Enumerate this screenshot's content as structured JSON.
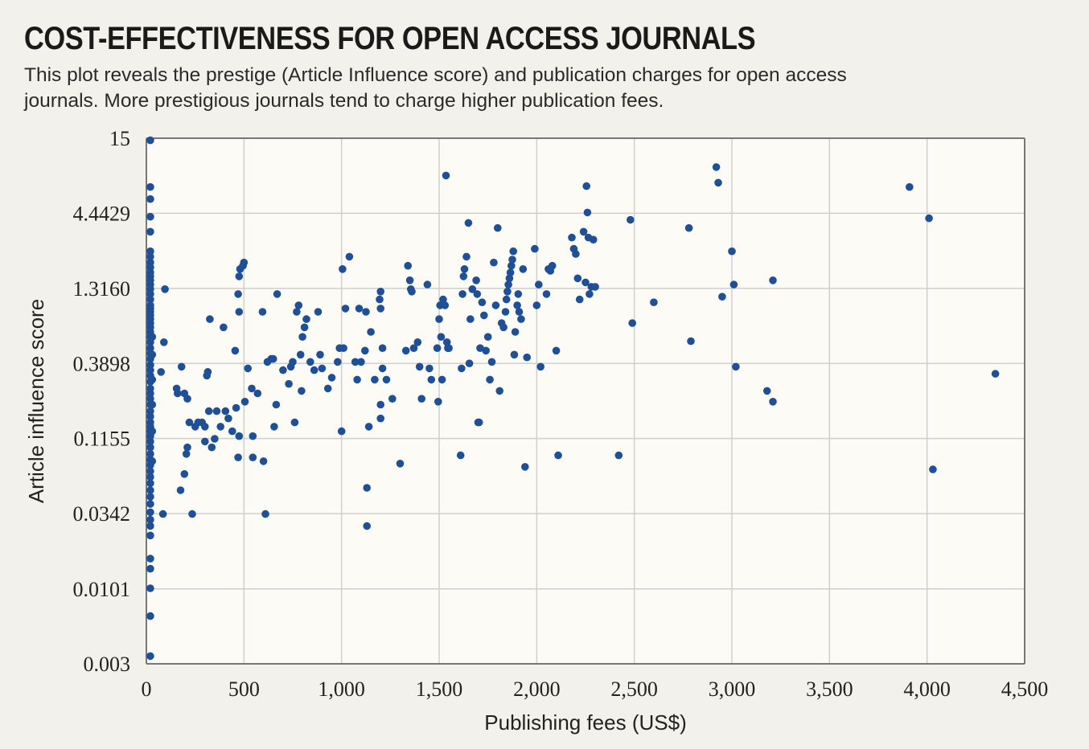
{
  "header": {
    "title": "COST-EFFECTIVENESS FOR OPEN ACCESS JOURNALS",
    "subtitle": "This plot reveals the prestige (Article Influence score) and publication charges for open access journals. More prestigious journals tend to charge higher publication fees."
  },
  "colors": {
    "background": "#f3f1ec",
    "plot_bg": "#fcfbf6",
    "grid": "#cfcfcf",
    "point": "#1f4f96",
    "axis": "#777777"
  },
  "chart_data": {
    "type": "scatter",
    "title": "COST-EFFECTIVENESS FOR OPEN ACCESS JOURNALS",
    "xlabel": "Publishing fees (US$)",
    "ylabel": "Article influence score",
    "xlim": [
      0,
      4500
    ],
    "ylim": [
      0.003,
      15
    ],
    "yscale": "log",
    "grid": true,
    "x_ticks": [
      0,
      500,
      1000,
      1500,
      2000,
      2500,
      3000,
      3500,
      4000,
      4500
    ],
    "x_tick_labels": [
      "0",
      "500",
      "1,000",
      "1,500",
      "2,000",
      "2,500",
      "3,000",
      "3,500",
      "4,000",
      "4,500"
    ],
    "y_ticks": [
      0.003,
      0.0101,
      0.0342,
      0.1155,
      0.3898,
      1.316,
      4.4429,
      15
    ],
    "y_tick_labels": [
      "0.003",
      "0.0101",
      "0.0342",
      "0.1155",
      "0.3898",
      "1.3160",
      "4.4429",
      "15"
    ],
    "series": [
      {
        "points": [
          [
            20,
            14.5
          ],
          [
            20,
            6.8
          ],
          [
            20,
            5.6
          ],
          [
            20,
            4.2
          ],
          [
            20,
            3.3
          ],
          [
            20,
            2.4
          ],
          [
            20,
            2.2
          ],
          [
            20,
            2.0
          ],
          [
            20,
            1.85
          ],
          [
            20,
            1.7
          ],
          [
            20,
            1.6
          ],
          [
            20,
            1.5
          ],
          [
            20,
            1.4
          ],
          [
            20,
            1.3
          ],
          [
            20,
            1.2
          ],
          [
            20,
            1.1
          ],
          [
            20,
            1.0
          ],
          [
            20,
            0.95
          ],
          [
            20,
            0.9
          ],
          [
            20,
            0.85
          ],
          [
            20,
            0.8
          ],
          [
            20,
            0.75
          ],
          [
            20,
            0.7
          ],
          [
            20,
            0.65
          ],
          [
            20,
            0.6
          ],
          [
            20,
            0.55
          ],
          [
            20,
            0.5
          ],
          [
            20,
            0.46
          ],
          [
            20,
            0.42
          ],
          [
            20,
            0.38
          ],
          [
            20,
            0.35
          ],
          [
            20,
            0.32
          ],
          [
            20,
            0.29
          ],
          [
            20,
            0.26
          ],
          [
            20,
            0.24
          ],
          [
            20,
            0.22
          ],
          [
            20,
            0.2
          ],
          [
            20,
            0.18
          ],
          [
            20,
            0.165
          ],
          [
            20,
            0.15
          ],
          [
            20,
            0.14
          ],
          [
            20,
            0.13
          ],
          [
            20,
            0.12
          ],
          [
            20,
            0.11
          ],
          [
            20,
            0.1
          ],
          [
            20,
            0.09
          ],
          [
            20,
            0.082
          ],
          [
            20,
            0.075
          ],
          [
            20,
            0.068
          ],
          [
            20,
            0.062
          ],
          [
            20,
            0.056
          ],
          [
            20,
            0.05
          ],
          [
            20,
            0.045
          ],
          [
            20,
            0.04
          ],
          [
            20,
            0.035
          ],
          [
            20,
            0.031
          ],
          [
            20,
            0.028
          ],
          [
            20,
            0.024
          ],
          [
            20,
            0.0165
          ],
          [
            20,
            0.014
          ],
          [
            20,
            0.0102
          ],
          [
            20,
            0.0065
          ],
          [
            20,
            0.0034
          ],
          [
            30,
            0.6
          ],
          [
            30,
            0.45
          ],
          [
            30,
            0.3
          ],
          [
            30,
            0.2
          ],
          [
            30,
            0.13
          ],
          [
            30,
            0.08
          ],
          [
            75,
            0.34
          ],
          [
            90,
            0.55
          ],
          [
            95,
            1.3
          ],
          [
            85,
            0.034
          ],
          [
            155,
            0.26
          ],
          [
            160,
            0.24
          ],
          [
            180,
            0.37
          ],
          [
            195,
            0.24
          ],
          [
            210,
            0.22
          ],
          [
            175,
            0.05
          ],
          [
            195,
            0.065
          ],
          [
            205,
            0.09
          ],
          [
            210,
            0.1
          ],
          [
            220,
            0.15
          ],
          [
            235,
            0.034
          ],
          [
            250,
            0.14
          ],
          [
            265,
            0.15
          ],
          [
            285,
            0.15
          ],
          [
            300,
            0.11
          ],
          [
            310,
            0.32
          ],
          [
            315,
            0.34
          ],
          [
            300,
            0.14
          ],
          [
            320,
            0.18
          ],
          [
            325,
            0.8
          ],
          [
            335,
            0.1
          ],
          [
            350,
            0.115
          ],
          [
            360,
            0.18
          ],
          [
            380,
            0.14
          ],
          [
            395,
            0.7
          ],
          [
            405,
            0.18
          ],
          [
            420,
            0.16
          ],
          [
            440,
            0.13
          ],
          [
            455,
            0.48
          ],
          [
            460,
            0.19
          ],
          [
            470,
            0.085
          ],
          [
            475,
            0.12
          ],
          [
            475,
            0.9
          ],
          [
            470,
            1.2
          ],
          [
            475,
            1.6
          ],
          [
            480,
            1.8
          ],
          [
            495,
            1.9
          ],
          [
            500,
            2.0
          ],
          [
            505,
            0.21
          ],
          [
            520,
            0.36
          ],
          [
            540,
            0.26
          ],
          [
            545,
            0.12
          ],
          [
            545,
            0.085
          ],
          [
            570,
            0.24
          ],
          [
            595,
            0.9
          ],
          [
            600,
            0.08
          ],
          [
            610,
            0.034
          ],
          [
            620,
            0.4
          ],
          [
            640,
            0.42
          ],
          [
            650,
            0.42
          ],
          [
            655,
            0.14
          ],
          [
            665,
            0.2
          ],
          [
            670,
            1.2
          ],
          [
            700,
            0.35
          ],
          [
            730,
            0.28
          ],
          [
            740,
            0.37
          ],
          [
            750,
            0.4
          ],
          [
            760,
            0.15
          ],
          [
            770,
            0.9
          ],
          [
            780,
            1.0
          ],
          [
            790,
            0.45
          ],
          [
            795,
            0.25
          ],
          [
            800,
            0.6
          ],
          [
            810,
            0.7
          ],
          [
            820,
            0.8
          ],
          [
            840,
            0.4
          ],
          [
            860,
            0.35
          ],
          [
            880,
            0.9
          ],
          [
            890,
            0.45
          ],
          [
            900,
            0.36
          ],
          [
            930,
            0.26
          ],
          [
            950,
            0.31
          ],
          [
            980,
            0.4
          ],
          [
            990,
            0.5
          ],
          [
            1000,
            0.13
          ],
          [
            1005,
            1.8
          ],
          [
            1010,
            0.5
          ],
          [
            1020,
            0.95
          ],
          [
            1040,
            2.2
          ],
          [
            1070,
            0.4
          ],
          [
            1080,
            0.3
          ],
          [
            1090,
            0.95
          ],
          [
            1100,
            0.4
          ],
          [
            1120,
            0.48
          ],
          [
            1125,
            0.9
          ],
          [
            1130,
            0.052
          ],
          [
            1130,
            0.028
          ],
          [
            1140,
            0.14
          ],
          [
            1150,
            0.65
          ],
          [
            1170,
            0.3
          ],
          [
            1195,
            1.1
          ],
          [
            1200,
            1.25
          ],
          [
            1200,
            0.95
          ],
          [
            1200,
            0.2
          ],
          [
            1200,
            0.16
          ],
          [
            1210,
            0.5
          ],
          [
            1210,
            0.36
          ],
          [
            1230,
            0.3
          ],
          [
            1260,
            0.22
          ],
          [
            1300,
            0.077
          ],
          [
            1330,
            0.48
          ],
          [
            1340,
            1.9
          ],
          [
            1350,
            1.5
          ],
          [
            1355,
            1.3
          ],
          [
            1360,
            1.25
          ],
          [
            1370,
            0.5
          ],
          [
            1390,
            0.55
          ],
          [
            1400,
            0.37
          ],
          [
            1410,
            0.22
          ],
          [
            1440,
            1.4
          ],
          [
            1450,
            0.36
          ],
          [
            1460,
            0.3
          ],
          [
            1490,
            0.5
          ],
          [
            1495,
            0.21
          ],
          [
            1500,
            0.8
          ],
          [
            1505,
            1.0
          ],
          [
            1510,
            0.6
          ],
          [
            1515,
            0.3
          ],
          [
            1520,
            1.1
          ],
          [
            1530,
            1.0
          ],
          [
            1535,
            8.2
          ],
          [
            1540,
            0.55
          ],
          [
            1545,
            0.5
          ],
          [
            1550,
            0.5
          ],
          [
            1610,
            0.088
          ],
          [
            1615,
            0.36
          ],
          [
            1620,
            1.2
          ],
          [
            1625,
            1.6
          ],
          [
            1630,
            1.8
          ],
          [
            1640,
            2.2
          ],
          [
            1650,
            3.8
          ],
          [
            1655,
            0.39
          ],
          [
            1660,
            0.8
          ],
          [
            1670,
            1.3
          ],
          [
            1690,
            1.5
          ],
          [
            1695,
            1.2
          ],
          [
            1700,
            0.15
          ],
          [
            1705,
            0.15
          ],
          [
            1710,
            0.5
          ],
          [
            1720,
            1.05
          ],
          [
            1730,
            0.85
          ],
          [
            1740,
            0.48
          ],
          [
            1750,
            0.6
          ],
          [
            1760,
            0.3
          ],
          [
            1770,
            0.4
          ],
          [
            1780,
            2.0
          ],
          [
            1790,
            1.0
          ],
          [
            1800,
            3.5
          ],
          [
            1810,
            0.25
          ],
          [
            1820,
            0.75
          ],
          [
            1830,
            0.7
          ],
          [
            1840,
            0.9
          ],
          [
            1845,
            1.1
          ],
          [
            1850,
            1.25
          ],
          [
            1855,
            1.4
          ],
          [
            1860,
            1.55
          ],
          [
            1865,
            1.7
          ],
          [
            1870,
            1.9
          ],
          [
            1875,
            2.1
          ],
          [
            1880,
            2.4
          ],
          [
            1885,
            0.45
          ],
          [
            1890,
            0.65
          ],
          [
            1900,
            1.0
          ],
          [
            1905,
            1.2
          ],
          [
            1910,
            0.9
          ],
          [
            1920,
            0.8
          ],
          [
            1930,
            1.8
          ],
          [
            1940,
            0.073
          ],
          [
            1950,
            0.43
          ],
          [
            1990,
            2.5
          ],
          [
            2000,
            1.0
          ],
          [
            2010,
            1.4
          ],
          [
            2020,
            0.37
          ],
          [
            2050,
            1.2
          ],
          [
            2060,
            1.8
          ],
          [
            2070,
            1.75
          ],
          [
            2080,
            1.9
          ],
          [
            2100,
            0.48
          ],
          [
            2110,
            0.088
          ],
          [
            2180,
            3.0
          ],
          [
            2190,
            2.5
          ],
          [
            2200,
            2.3
          ],
          [
            2210,
            1.55
          ],
          [
            2220,
            1.1
          ],
          [
            2240,
            3.3
          ],
          [
            2250,
            1.45
          ],
          [
            2255,
            6.9
          ],
          [
            2260,
            4.5
          ],
          [
            2265,
            3.0
          ],
          [
            2270,
            1.2
          ],
          [
            2280,
            1.35
          ],
          [
            2290,
            2.9
          ],
          [
            2300,
            1.35
          ],
          [
            2420,
            0.088
          ],
          [
            2480,
            4.0
          ],
          [
            2490,
            0.75
          ],
          [
            2600,
            1.05
          ],
          [
            2780,
            3.5
          ],
          [
            2790,
            0.56
          ],
          [
            2920,
            9.4
          ],
          [
            2930,
            7.3
          ],
          [
            2950,
            1.15
          ],
          [
            3000,
            2.4
          ],
          [
            3010,
            1.4
          ],
          [
            3020,
            0.37
          ],
          [
            3180,
            0.25
          ],
          [
            3210,
            0.21
          ],
          [
            3210,
            1.5
          ],
          [
            3910,
            6.8
          ],
          [
            4010,
            4.1
          ],
          [
            4030,
            0.07
          ],
          [
            4350,
            0.33
          ]
        ]
      }
    ]
  }
}
